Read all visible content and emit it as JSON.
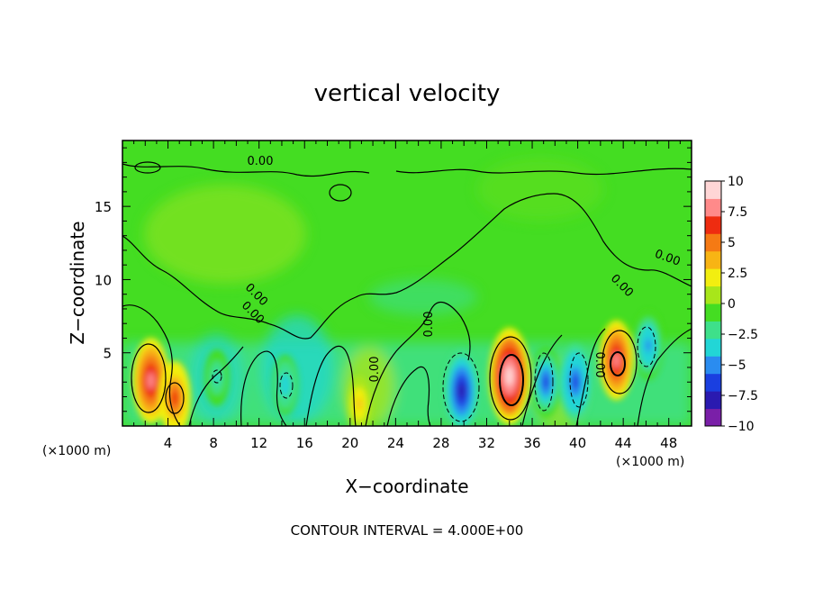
{
  "chart_data": {
    "type": "heatmap",
    "title": "vertical velocity",
    "xlabel": "X−coordinate",
    "ylabel": "Z−coordinate",
    "x_unit_left": "(×1000 m)",
    "x_unit_right": "(×1000 m)",
    "footer": "CONTOUR INTERVAL = 4.000E+00",
    "xlim": [
      0,
      50
    ],
    "ylim": [
      0,
      19.5
    ],
    "x_ticks": [
      4,
      8,
      12,
      16,
      20,
      24,
      28,
      32,
      36,
      40,
      44,
      48
    ],
    "y_ticks": [
      5,
      10,
      15
    ],
    "colorbar": {
      "range": [
        -10,
        10
      ],
      "ticks": [
        10,
        7.5,
        5,
        2.5,
        0,
        -2.5,
        -5,
        -7.5,
        -10
      ],
      "tick_labels": [
        "10",
        "7.5",
        "5",
        "2.5",
        "0",
        "−2.5",
        "−5",
        "−7.5",
        "−10"
      ],
      "colors": [
        "#7a1fa8",
        "#2a1ab0",
        "#1a3fe0",
        "#2a8cf0",
        "#22d6d6",
        "#3ee08a",
        "#44dd22",
        "#a8e61a",
        "#f2ee10",
        "#f8b414",
        "#f57a14",
        "#ee2c10",
        "#ff8a8a",
        "#ffd6d6"
      ]
    },
    "contour_labels": [
      "0.00",
      "0.00",
      "0.00",
      "0.00",
      "0.00",
      "0.00",
      "0.00",
      "0.00"
    ],
    "features": [
      {
        "x": 2.5,
        "z": 3.1,
        "value": 8.0
      },
      {
        "x": 4.6,
        "z": 1.9,
        "value": 6.0
      },
      {
        "x": 8.3,
        "z": 3.3,
        "value": -3.0
      },
      {
        "x": 14.3,
        "z": 2.8,
        "value": -3.5
      },
      {
        "x": 29.8,
        "z": 2.4,
        "value": -7.5
      },
      {
        "x": 34.0,
        "z": 3.4,
        "value": 10.0
      },
      {
        "x": 37.2,
        "z": 3.0,
        "value": -5.5
      },
      {
        "x": 39.8,
        "z": 3.0,
        "value": -6.5
      },
      {
        "x": 43.4,
        "z": 4.5,
        "value": 7.0
      },
      {
        "x": 46.2,
        "z": 5.5,
        "value": -5.0
      },
      {
        "x": 20.8,
        "z": 1.5,
        "value": 3.0
      }
    ]
  }
}
